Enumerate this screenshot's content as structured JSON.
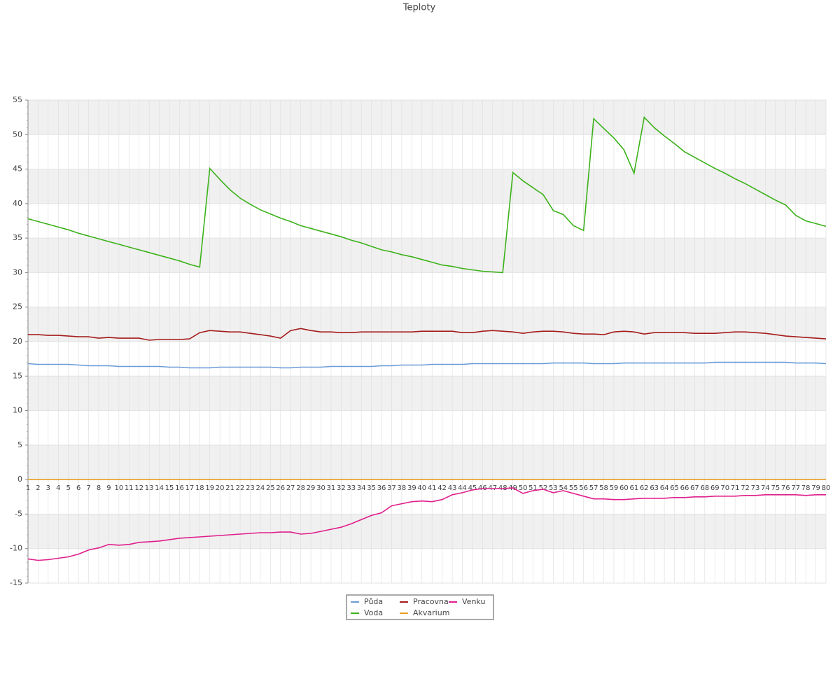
{
  "chart_data": {
    "type": "line",
    "title": "Teploty",
    "x": [
      1,
      2,
      3,
      4,
      5,
      6,
      7,
      8,
      9,
      10,
      11,
      12,
      13,
      14,
      15,
      16,
      17,
      18,
      19,
      20,
      21,
      22,
      23,
      24,
      25,
      26,
      27,
      28,
      29,
      30,
      31,
      32,
      33,
      34,
      35,
      36,
      37,
      38,
      39,
      40,
      41,
      42,
      43,
      44,
      45,
      46,
      47,
      48,
      49,
      50,
      51,
      52,
      53,
      54,
      55,
      56,
      57,
      58,
      59,
      60,
      61,
      62,
      63,
      64,
      65,
      66,
      67,
      68,
      69,
      70,
      71,
      72,
      73,
      74,
      75,
      76,
      77,
      78,
      79,
      80
    ],
    "ylim": [
      -15,
      55
    ],
    "yticks": [
      -15,
      -10,
      -5,
      0,
      5,
      10,
      15,
      20,
      25,
      30,
      35,
      40,
      45,
      50,
      55
    ],
    "grid": true,
    "series": [
      {
        "name": "Půda",
        "color": "#6a9ad8",
        "values": [
          16.8,
          16.7,
          16.7,
          16.7,
          16.7,
          16.6,
          16.5,
          16.5,
          16.5,
          16.4,
          16.4,
          16.4,
          16.4,
          16.4,
          16.3,
          16.3,
          16.2,
          16.2,
          16.2,
          16.3,
          16.3,
          16.3,
          16.3,
          16.3,
          16.3,
          16.2,
          16.2,
          16.3,
          16.3,
          16.3,
          16.4,
          16.4,
          16.4,
          16.4,
          16.4,
          16.5,
          16.5,
          16.6,
          16.6,
          16.6,
          16.7,
          16.7,
          16.7,
          16.7,
          16.8,
          16.8,
          16.8,
          16.8,
          16.8,
          16.8,
          16.8,
          16.8,
          16.9,
          16.9,
          16.9,
          16.9,
          16.8,
          16.8,
          16.8,
          16.9,
          16.9,
          16.9,
          16.9,
          16.9,
          16.9,
          16.9,
          16.9,
          16.9,
          17.0,
          17.0,
          17.0,
          17.0,
          17.0,
          17.0,
          17.0,
          17.0,
          16.9,
          16.9,
          16.9,
          16.8
        ]
      },
      {
        "name": "Voda",
        "color": "#3cb21a",
        "values": [
          37.8,
          37.4,
          37.0,
          36.6,
          36.2,
          35.7,
          35.3,
          34.9,
          34.5,
          34.1,
          33.7,
          33.3,
          32.9,
          32.5,
          32.1,
          31.7,
          31.2,
          30.8,
          45.1,
          43.5,
          42.0,
          40.8,
          39.9,
          39.1,
          38.5,
          37.9,
          37.4,
          36.8,
          36.4,
          36.0,
          35.6,
          35.2,
          34.7,
          34.3,
          33.8,
          33.3,
          33.0,
          32.6,
          32.3,
          31.9,
          31.5,
          31.1,
          30.9,
          30.6,
          30.4,
          30.2,
          30.1,
          30.0,
          44.5,
          43.3,
          42.3,
          41.3,
          39.0,
          38.4,
          36.8,
          36.1,
          52.3,
          50.9,
          49.5,
          47.8,
          44.4,
          52.5,
          51.0,
          49.8,
          48.7,
          47.5,
          46.7,
          45.9,
          45.1,
          44.4,
          43.6,
          42.9,
          42.1,
          41.3,
          40.5,
          39.8,
          38.3,
          37.5,
          37.1,
          36.7
        ]
      },
      {
        "name": "Pracovna",
        "color": "#a51c1c",
        "values": [
          21.0,
          21.0,
          20.9,
          20.9,
          20.8,
          20.7,
          20.7,
          20.5,
          20.6,
          20.5,
          20.5,
          20.5,
          20.2,
          20.3,
          20.3,
          20.3,
          20.4,
          21.3,
          21.6,
          21.5,
          21.4,
          21.4,
          21.2,
          21.0,
          20.8,
          20.5,
          21.6,
          21.9,
          21.6,
          21.4,
          21.4,
          21.3,
          21.3,
          21.4,
          21.4,
          21.4,
          21.4,
          21.4,
          21.4,
          21.5,
          21.5,
          21.5,
          21.5,
          21.3,
          21.3,
          21.5,
          21.6,
          21.5,
          21.4,
          21.2,
          21.4,
          21.5,
          21.5,
          21.4,
          21.2,
          21.1,
          21.1,
          21.0,
          21.4,
          21.5,
          21.4,
          21.1,
          21.3,
          21.3,
          21.3,
          21.3,
          21.2,
          21.2,
          21.2,
          21.3,
          21.4,
          21.4,
          21.3,
          21.2,
          21.0,
          20.8,
          20.7,
          20.6,
          20.5,
          20.4
        ]
      },
      {
        "name": "Akvarium",
        "color": "#e8a020",
        "values": [
          0,
          0,
          0,
          0,
          0,
          0,
          0,
          0,
          0,
          0,
          0,
          0,
          0,
          0,
          0,
          0,
          0,
          0,
          0,
          0,
          0,
          0,
          0,
          0,
          0,
          0,
          0,
          0,
          0,
          0,
          0,
          0,
          0,
          0,
          0,
          0,
          0,
          0,
          0,
          0,
          0,
          0,
          0,
          0,
          0,
          0,
          0,
          0,
          0,
          0,
          0,
          0,
          0,
          0,
          0,
          0,
          0,
          0,
          0,
          0,
          0,
          0,
          0,
          0,
          0,
          0,
          0,
          0,
          0,
          0,
          0,
          0,
          0,
          0,
          0,
          0,
          0,
          0,
          0,
          0
        ]
      },
      {
        "name": "Venku",
        "color": "#e01e8c",
        "values": [
          -11.5,
          -11.7,
          -11.6,
          -11.4,
          -11.2,
          -10.8,
          -10.2,
          -9.9,
          -9.4,
          -9.5,
          -9.4,
          -9.1,
          -9.0,
          -8.9,
          -8.7,
          -8.5,
          -8.4,
          -8.3,
          -8.2,
          -8.1,
          -8.0,
          -7.9,
          -7.8,
          -7.7,
          -7.7,
          -7.6,
          -7.6,
          -7.9,
          -7.8,
          -7.5,
          -7.2,
          -6.9,
          -6.4,
          -5.8,
          -5.2,
          -4.8,
          -3.8,
          -3.5,
          -3.2,
          -3.1,
          -3.2,
          -2.9,
          -2.2,
          -1.9,
          -1.5,
          -1.3,
          -1.3,
          -1.3,
          -1.2,
          -2.0,
          -1.6,
          -1.4,
          -1.9,
          -1.6,
          -2.0,
          -2.4,
          -2.8,
          -2.8,
          -2.9,
          -2.9,
          -2.8,
          -2.7,
          -2.7,
          -2.7,
          -2.6,
          -2.6,
          -2.5,
          -2.5,
          -2.4,
          -2.4,
          -2.4,
          -2.3,
          -2.3,
          -2.2,
          -2.2,
          -2.2,
          -2.2,
          -2.3,
          -2.2,
          -2.2
        ]
      }
    ]
  }
}
